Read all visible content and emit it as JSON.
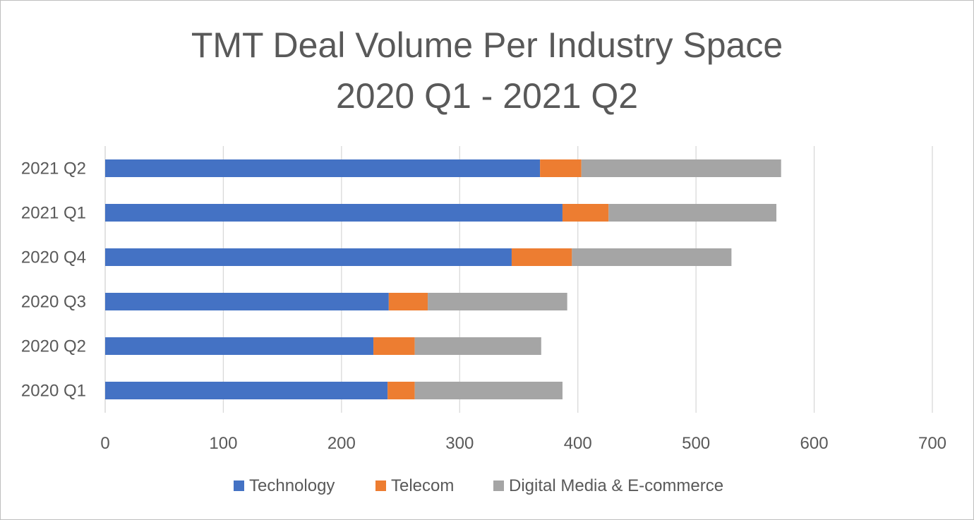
{
  "chart_data": {
    "type": "bar",
    "orientation": "horizontal",
    "stacked": true,
    "title_line1": "TMT Deal Volume Per Industry Space",
    "title_line2": "2020 Q1 - 2021 Q2",
    "categories": [
      "2020 Q1",
      "2020 Q2",
      "2020 Q3",
      "2020 Q4",
      "2021 Q1",
      "2021 Q2"
    ],
    "series": [
      {
        "name": "Technology",
        "color": "#4472C4",
        "values": [
          239,
          227,
          240,
          344,
          387,
          368
        ]
      },
      {
        "name": "Telecom",
        "color": "#ED7D31",
        "values": [
          23,
          35,
          33,
          51,
          39,
          35
        ]
      },
      {
        "name": "Digital Media & E-commerce",
        "color": "#A5A5A5",
        "values": [
          125,
          107,
          118,
          135,
          142,
          169
        ]
      }
    ],
    "xlim": [
      0,
      700
    ],
    "xticks": [
      "0",
      "100",
      "200",
      "300",
      "400",
      "500",
      "600",
      "700"
    ],
    "grid": true,
    "legend_position": "bottom"
  }
}
